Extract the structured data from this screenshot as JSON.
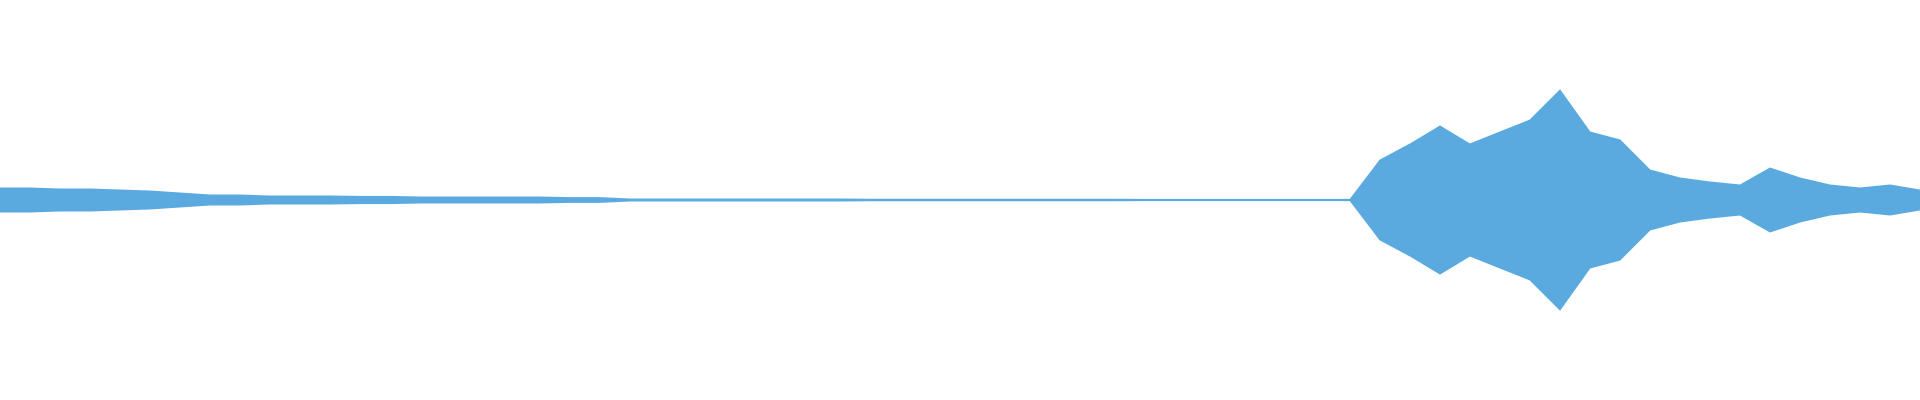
{
  "chart_data": {
    "type": "waveform",
    "color": "#5aaae0",
    "ylim": [
      -1,
      1
    ],
    "values": [
      0.06,
      0.06,
      0.055,
      0.055,
      0.05,
      0.045,
      0.035,
      0.025,
      0.025,
      0.02,
      0.02,
      0.02,
      0.018,
      0.018,
      0.015,
      0.015,
      0.015,
      0.015,
      0.015,
      0.012,
      0.012,
      0.005,
      0.005,
      0.005,
      0.005,
      0.005,
      0.005,
      0.005,
      0.005,
      0.004,
      0.004,
      0.004,
      0.004,
      0.004,
      0.004,
      0.004,
      0.004,
      0.004,
      0.003,
      0.003,
      0.003,
      0.003,
      0.003,
      0.003,
      0.003,
      0.003,
      0.2,
      0.28,
      0.37,
      0.28,
      0.34,
      0.4,
      0.55,
      0.34,
      0.3,
      0.15,
      0.11,
      0.09,
      0.075,
      0.16,
      0.11,
      0.075,
      0.06,
      0.075,
      0.05
    ]
  }
}
